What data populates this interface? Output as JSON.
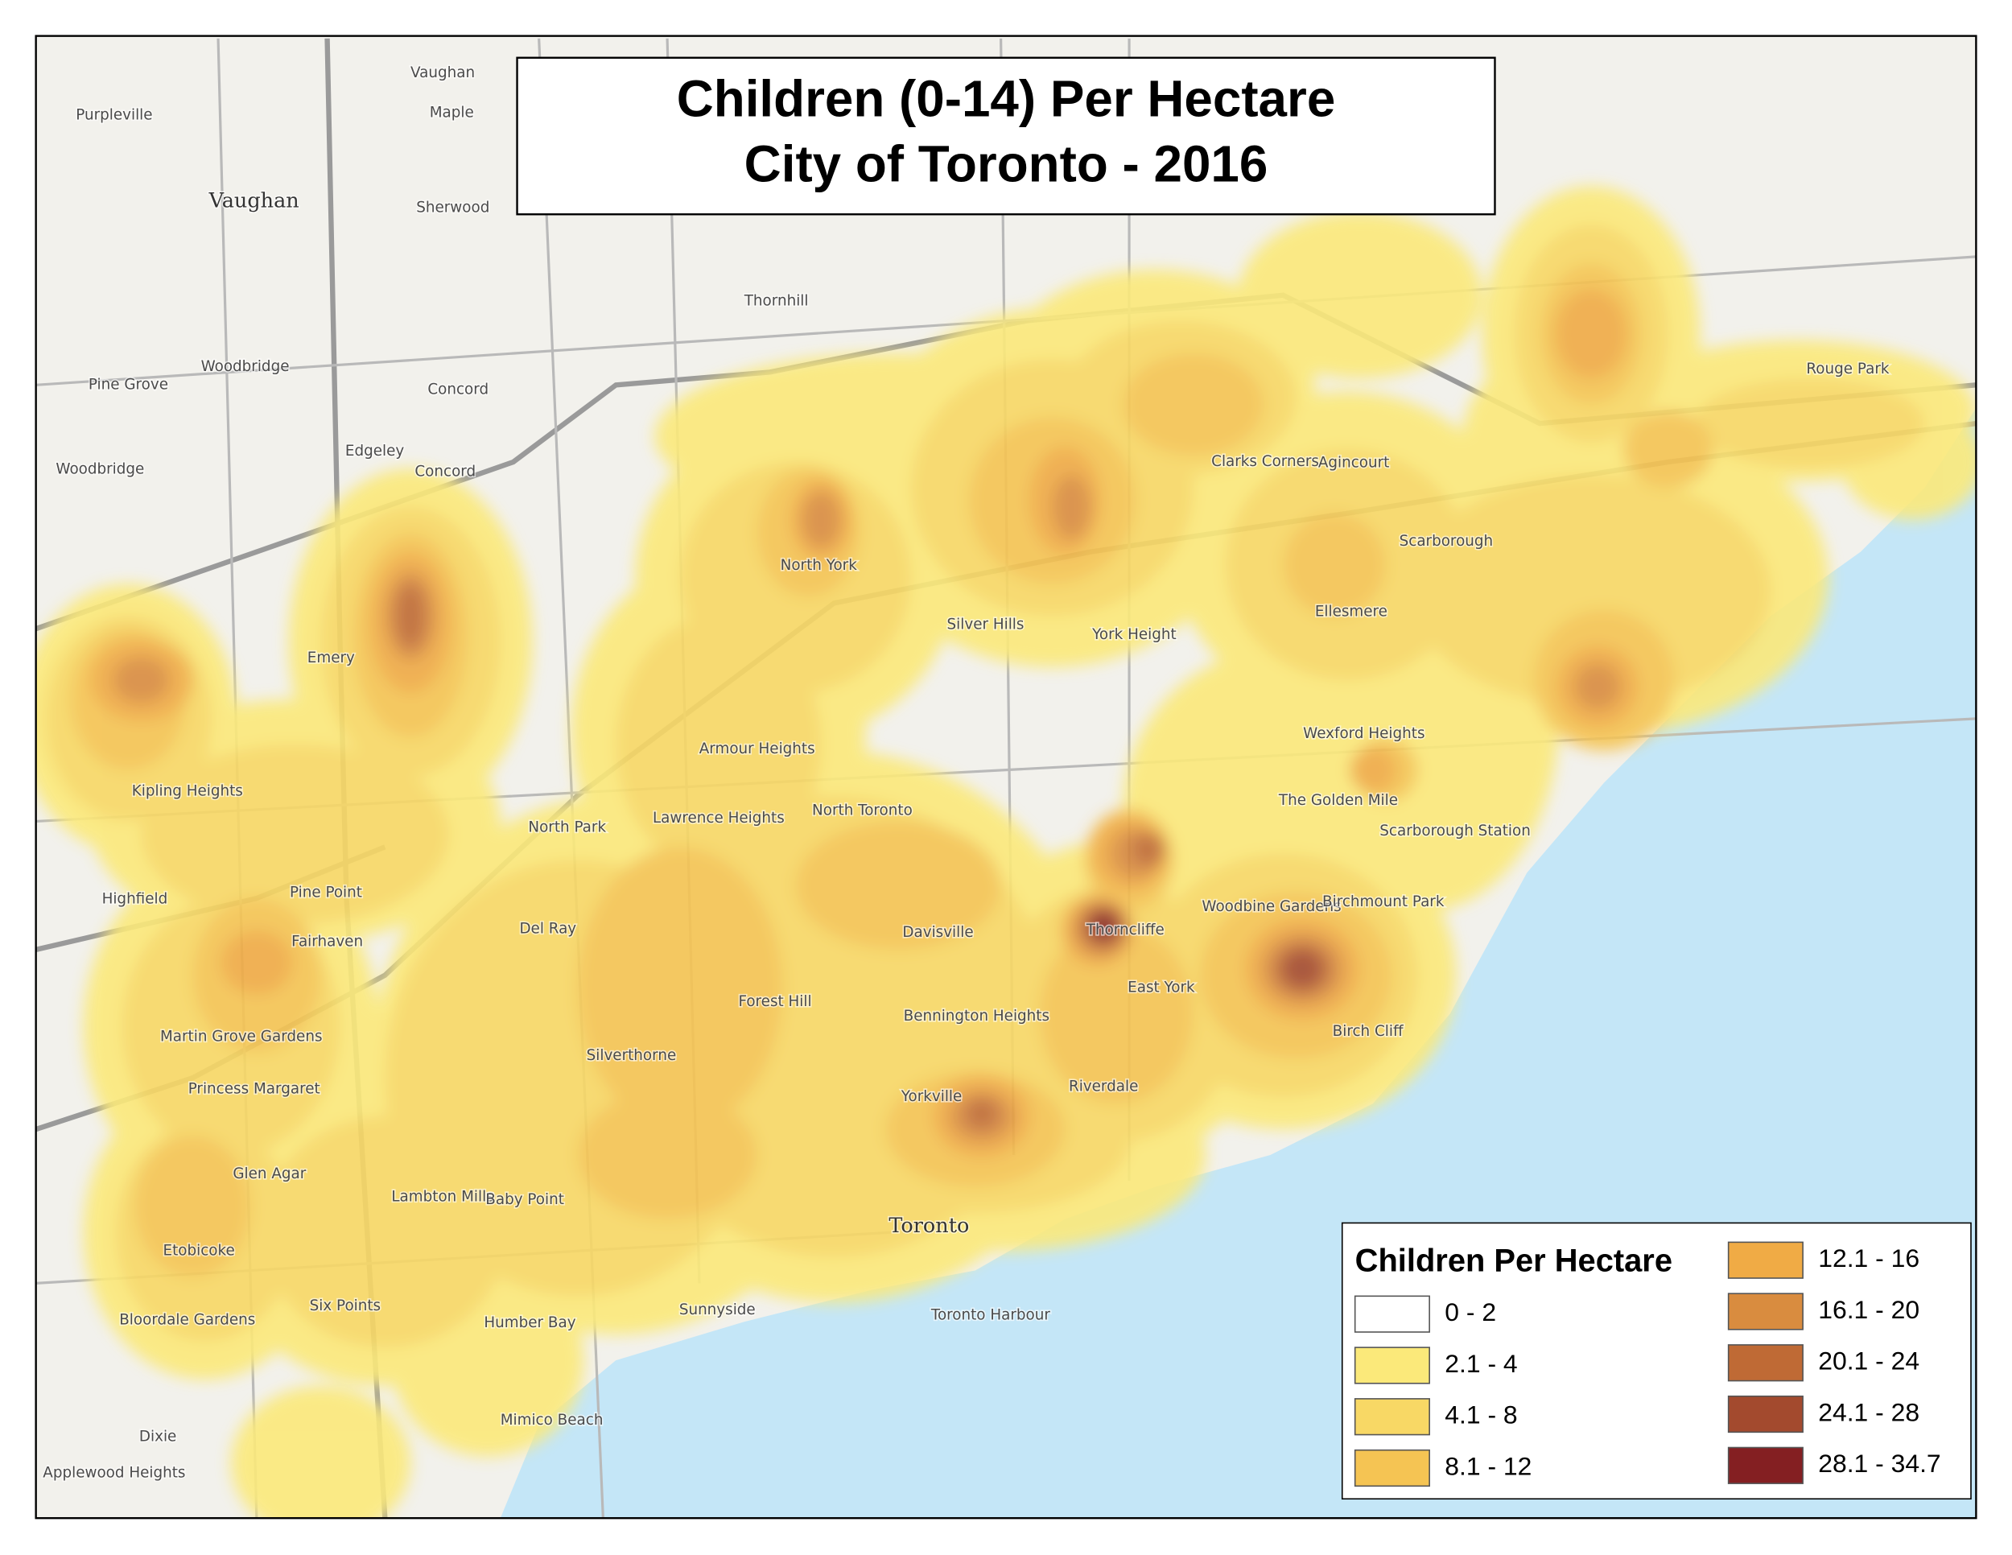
{
  "title": {
    "line1": "Children (0-14) Per Hectare",
    "line2": "City of Toronto - 2016"
  },
  "legend": {
    "title": "Children Per Hectare",
    "entries": [
      {
        "label": "0 - 2",
        "color": "#ffffff"
      },
      {
        "label": "2.1 - 4",
        "color": "#fbe97a"
      },
      {
        "label": "4.1 - 8",
        "color": "#f8d865"
      },
      {
        "label": "8.1 - 12",
        "color": "#f5c453"
      },
      {
        "label": "12.1 - 16",
        "color": "#f0ab45"
      },
      {
        "label": "16.1 - 20",
        "color": "#d98c3f"
      },
      {
        "label": "20.1 - 24",
        "color": "#bf6a35"
      },
      {
        "label": "24.1 - 28",
        "color": "#a34a2e"
      },
      {
        "label": "28.1 - 34.7",
        "color": "#841f22"
      }
    ]
  },
  "places": [
    "Vaughan",
    "Purpleville",
    "Maple",
    "Vaughan",
    "Sherwood",
    "Thornhill",
    "Woodbridge",
    "Pine Grove",
    "Concord",
    "Edgeley",
    "Woodbridge",
    "Concord",
    "Emery",
    "Kipling Heights",
    "North York",
    "Silver Hills",
    "York Height",
    "Clarks Corners",
    "Agincourt",
    "Scarborough",
    "Ellesmere",
    "Rouge Park",
    "Armour Heights",
    "North Toronto",
    "Lawrence Heights",
    "North Park",
    "Wexford Heights",
    "The Golden Mile",
    "Scarborough Station",
    "Highfield",
    "Pine Point",
    "Fairhaven",
    "Del Ray",
    "Davisville",
    "Thorncliffe",
    "Woodbine Gardens",
    "Birchmount Park",
    "East York",
    "Martin Grove Gardens",
    "Forest Hill",
    "Bennington Heights",
    "Birch Cliff",
    "Silverthorne",
    "Princess Margaret",
    "Yorkville",
    "Riverdale",
    "Glen Agar",
    "Lambton Mills",
    "Baby Point",
    "Toronto",
    "Etobicoke",
    "Six Points",
    "Humber Bay",
    "Bloordale Gardens",
    "Sunnyside",
    "Mimico Beach",
    "Dixie",
    "Applewood Heights",
    "Toronto Harbour"
  ]
}
